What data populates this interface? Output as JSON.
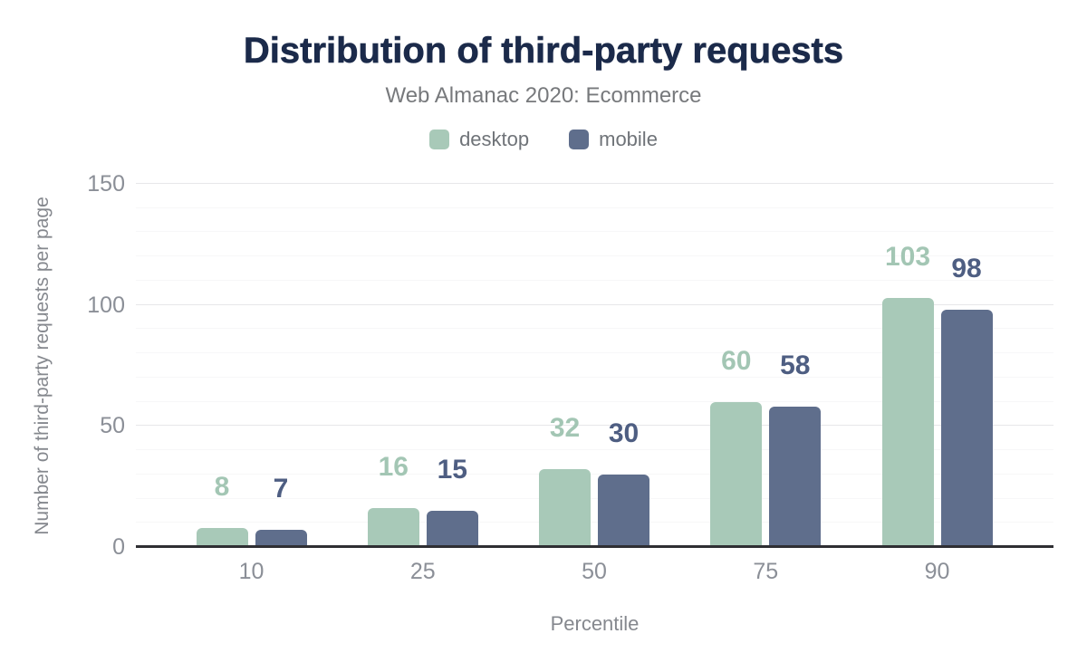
{
  "chart_data": {
    "type": "bar",
    "title": "Distribution of third-party requests",
    "subtitle": "Web Almanac 2020: Ecommerce",
    "xlabel": "Percentile",
    "ylabel": "Number of third-party requests per page",
    "categories": [
      "10",
      "25",
      "50",
      "75",
      "90"
    ],
    "series": [
      {
        "name": "desktop",
        "color": "#a8c9b8",
        "label_color": "#a3c6b4",
        "values": [
          8,
          16,
          32,
          60,
          103
        ]
      },
      {
        "name": "mobile",
        "color": "#5f6e8c",
        "label_color": "#4e5e82",
        "values": [
          7,
          15,
          30,
          58,
          98
        ]
      }
    ],
    "ylim": [
      0,
      150
    ],
    "yticks": [
      0,
      50,
      100,
      150
    ],
    "minor_grid_step": 10,
    "grid": true,
    "legend_position": "top",
    "bar_labels_shown": true
  },
  "colors": {
    "title_text": "#1b2a4a",
    "subtitle_text": "#77797c",
    "legend_text": "#6f7378",
    "axis_tick_text": "#8b8f97",
    "axis_title_text": "#85888e",
    "baseline": "#2f2f33",
    "major_gridline": "#e7e7e9",
    "minor_gridline": "#f7f7f8",
    "background": "#ffffff"
  }
}
